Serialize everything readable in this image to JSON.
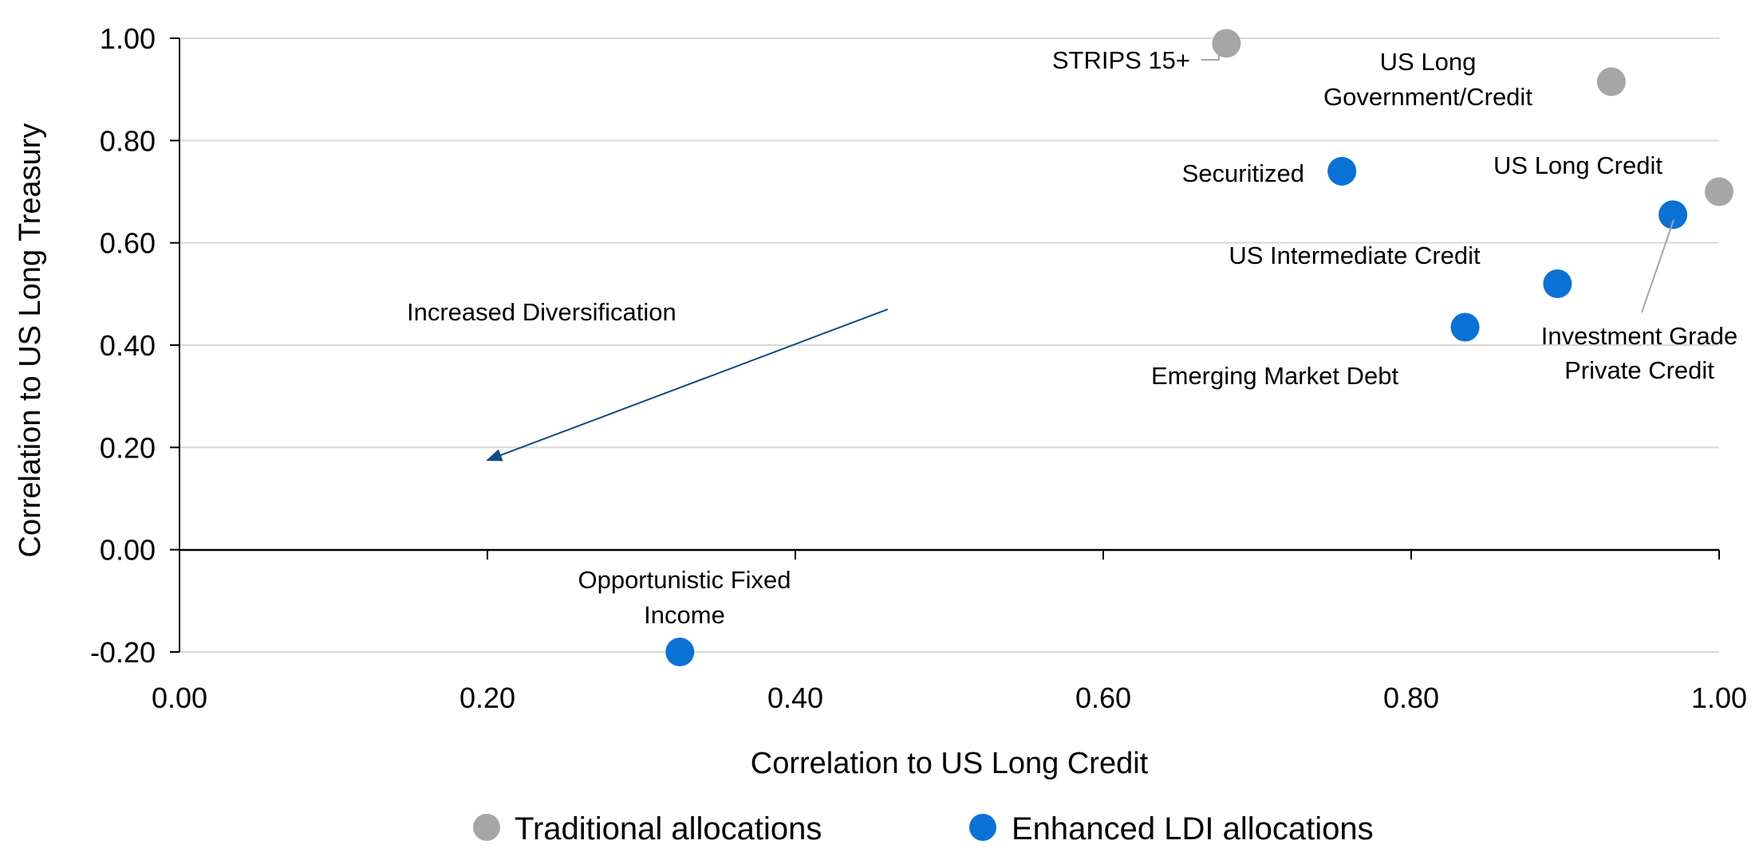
{
  "chart_data": {
    "type": "scatter",
    "xlabel": "Correlation to US Long Credit",
    "ylabel": "Correlation to US  Long Treasury",
    "xlim": [
      0.0,
      1.0
    ],
    "ylim": [
      -0.2,
      1.0
    ],
    "xticks": [
      "0.00",
      "0.20",
      "0.40",
      "0.60",
      "0.80",
      "1.00"
    ],
    "yticks": [
      "-0.20",
      "0.00",
      "0.20",
      "0.40",
      "0.60",
      "0.80",
      "1.00"
    ],
    "grid": "horizontal",
    "legend_position": "bottom",
    "series": [
      {
        "name": "Traditional allocations",
        "color": "#a6a6a6",
        "points": [
          {
            "x": 0.68,
            "y": 0.99,
            "label": "STRIPS 15+"
          },
          {
            "x": 0.93,
            "y": 0.915,
            "label": "US Long Government/Credit"
          },
          {
            "x": 1.0,
            "y": 0.7,
            "label": "US Long Credit"
          }
        ]
      },
      {
        "name": "Enhanced LDI allocations",
        "color": "#0a72d4",
        "points": [
          {
            "x": 0.755,
            "y": 0.74,
            "label": "Securitized"
          },
          {
            "x": 0.97,
            "y": 0.655,
            "label": "Investment Grade Private Credit"
          },
          {
            "x": 0.895,
            "y": 0.52,
            "label": "US Intermediate Credit"
          },
          {
            "x": 0.835,
            "y": 0.435,
            "label": "Emerging Market Debt"
          },
          {
            "x": 0.325,
            "y": -0.2,
            "label": "Opportunistic Fixed Income"
          }
        ]
      }
    ],
    "annotations": [
      {
        "text": "Increased Diversification",
        "arrow_from": [
          0.46,
          0.47
        ],
        "arrow_to": [
          0.2,
          0.175
        ],
        "color": "#0f4c81"
      }
    ]
  }
}
